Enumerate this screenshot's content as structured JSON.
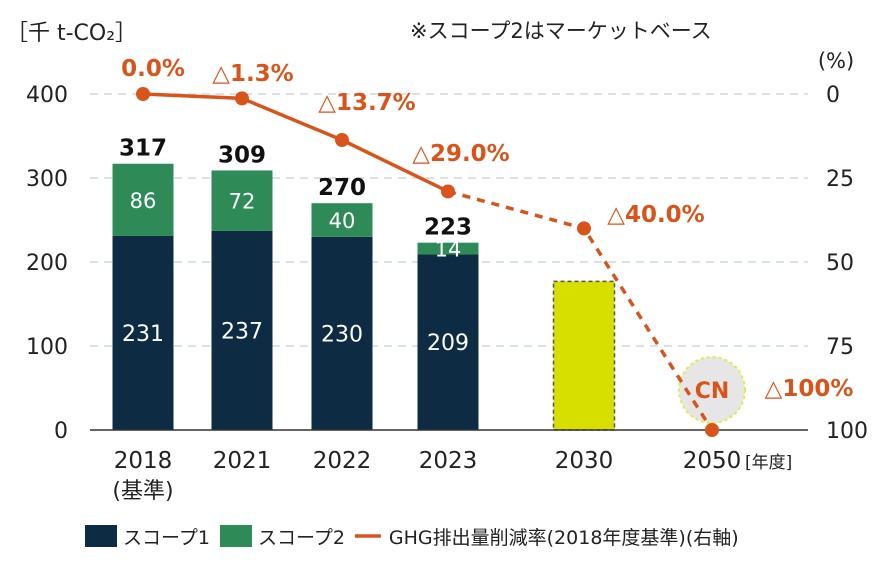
{
  "chart_data": {
    "type": "bar",
    "unit_label": "［千 t-CO₂］",
    "note": "※スコープ2はマーケットベース",
    "right_unit": "(%)",
    "x_unit": "[年度]",
    "categories": [
      "2018",
      "2021",
      "2022",
      "2023",
      "2030",
      "2050"
    ],
    "category_sublabels": [
      "(基準)",
      "",
      "",
      "",
      "",
      ""
    ],
    "ylim": [
      0,
      400
    ],
    "y_ticks": [
      0,
      100,
      200,
      300,
      400
    ],
    "y2lim": [
      0,
      100
    ],
    "y2_ticks": [
      0,
      25,
      50,
      75,
      100
    ],
    "y2_inverted": true,
    "series": [
      {
        "name": "スコープ1",
        "color": "#0d2b42",
        "values": [
          231,
          237,
          230,
          209,
          null,
          null
        ]
      },
      {
        "name": "スコープ2",
        "color": "#2e8b57",
        "values": [
          86,
          72,
          40,
          14,
          null,
          null
        ]
      }
    ],
    "totals": [
      317,
      309,
      270,
      223,
      null,
      null
    ],
    "target_bar": {
      "category": "2030",
      "value": 177,
      "color": "#d7df01",
      "dashed_border": true
    },
    "reduction": {
      "name": "GHG排出量削減率(2018年度基準)(右軸)",
      "color": "#d9541a",
      "x": [
        "2018",
        "2021",
        "2022",
        "2023",
        "2030",
        "2050"
      ],
      "values": [
        0,
        1.3,
        13.7,
        29.0,
        40.0,
        100
      ],
      "labels": [
        "0.0%",
        "△1.3%",
        "△13.7%",
        "△29.0%",
        "△40.0%",
        "△100%"
      ],
      "solid_until": "2023",
      "dashed_after": "2023"
    },
    "cn_label": "CN",
    "legend": [
      {
        "label": "スコープ1",
        "type": "box",
        "color": "#0d2b42"
      },
      {
        "label": "スコープ2",
        "type": "box",
        "color": "#2e8b57"
      },
      {
        "label": "GHG排出量削減率(2018年度基準)(右軸)",
        "type": "line",
        "color": "#d9541a"
      }
    ]
  }
}
